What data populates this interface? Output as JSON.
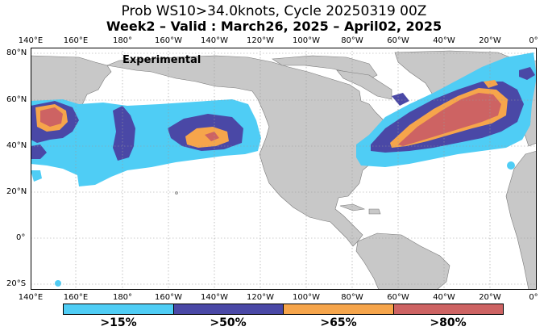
{
  "title": {
    "line1": "Prob WS10>34.0knots, Cycle 20250319 00Z",
    "line2": "Week2 – Valid : March26, 2025 – April02, 2025"
  },
  "map": {
    "annotation": "Experimental",
    "lon_ticks": [
      "140°E",
      "160°E",
      "180°",
      "160°W",
      "140°W",
      "120°W",
      "100°W",
      "80°W",
      "60°W",
      "40°W",
      "20°W",
      "0°"
    ],
    "lat_ticks": [
      "80°N",
      "60°N",
      "40°N",
      "20°N",
      "0°",
      "20°S"
    ],
    "colors": {
      "ocean": "#ffffff",
      "land": "#c8c8c8",
      "grid": "#9a9a9a"
    }
  },
  "legend": {
    "categories": [
      {
        "label": ">15%",
        "color": "#4fcdf5"
      },
      {
        "label": ">50%",
        "color": "#4a48a6"
      },
      {
        "label": ">65%",
        "color": "#f6a54b"
      },
      {
        "label": ">80%",
        "color": "#cd6363"
      }
    ]
  }
}
